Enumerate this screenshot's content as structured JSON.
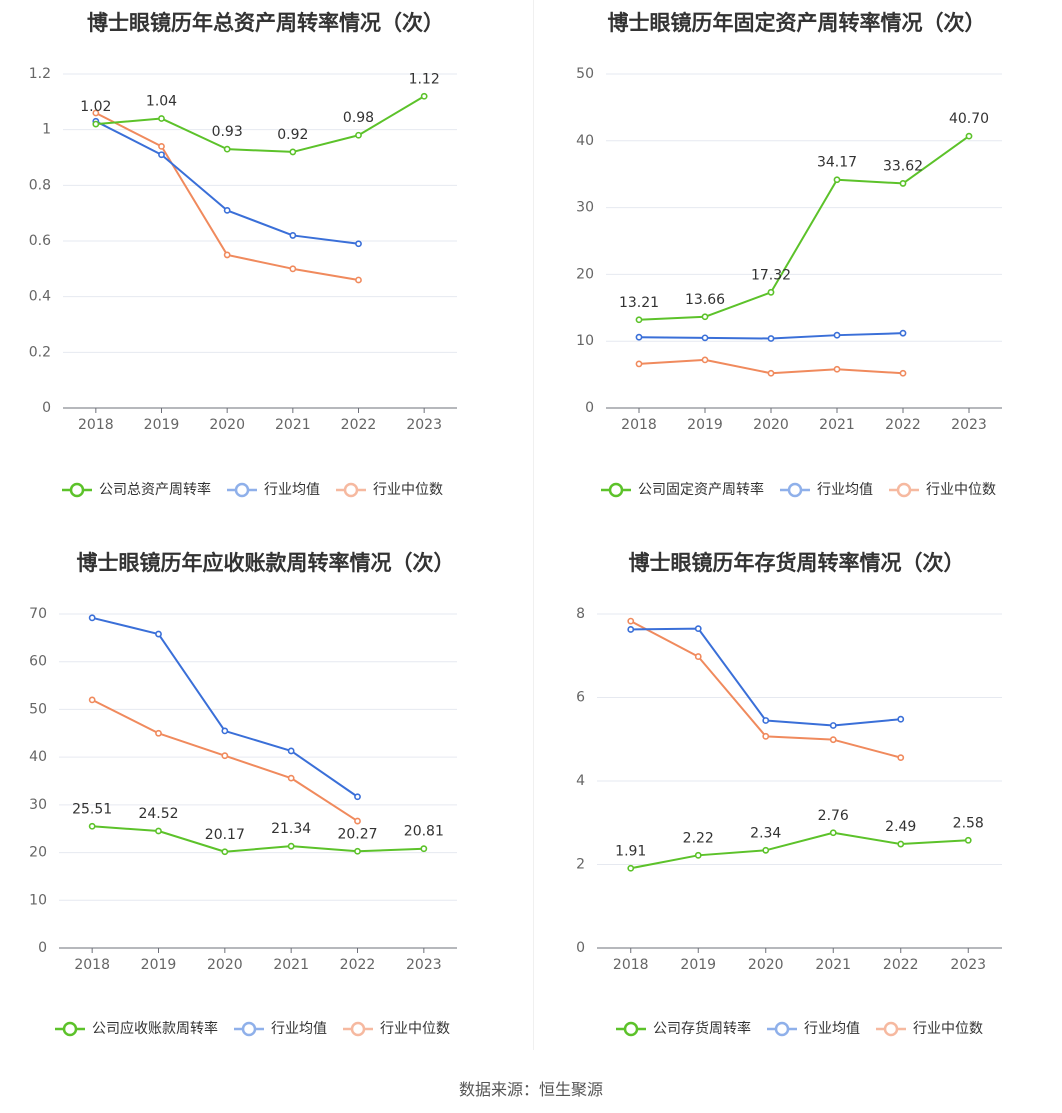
{
  "source": "数据来源：恒生聚源",
  "colors": {
    "company": "#5cc22a",
    "avg": "#3a6fd8",
    "median": "#f08a5d",
    "avg_legend": "#8fb0ea",
    "median_legend": "#f6b9a0"
  },
  "chart_data": [
    {
      "type": "line",
      "title": "博士眼镜历年总资产周转率情况（次）",
      "categories": [
        "2018",
        "2019",
        "2020",
        "2021",
        "2022",
        "2023"
      ],
      "ylim": [
        0,
        1.2
      ],
      "yticks": [
        "0",
        "0.2",
        "0.4",
        "0.6",
        "0.8",
        "1",
        "1.2"
      ],
      "ytick_values": [
        0,
        0.2,
        0.4,
        0.6,
        0.8,
        1,
        1.2
      ],
      "series": [
        {
          "name": "公司总资产周转率",
          "values": [
            1.02,
            1.04,
            0.93,
            0.92,
            0.98,
            1.12
          ],
          "labels": [
            "1.02",
            "1.04",
            "0.93",
            "0.92",
            "0.98",
            "1.12"
          ]
        },
        {
          "name": "行业均值",
          "values": [
            1.03,
            0.91,
            0.71,
            0.62,
            0.59,
            null
          ]
        },
        {
          "name": "行业中位数",
          "values": [
            1.06,
            0.94,
            0.55,
            0.5,
            0.46,
            null
          ]
        }
      ]
    },
    {
      "type": "line",
      "title": "博士眼镜历年固定资产周转率情况（次）",
      "categories": [
        "2018",
        "2019",
        "2020",
        "2021",
        "2022",
        "2023"
      ],
      "ylim": [
        0,
        50
      ],
      "yticks": [
        "0",
        "10",
        "20",
        "30",
        "40",
        "50"
      ],
      "ytick_values": [
        0,
        10,
        20,
        30,
        40,
        50
      ],
      "series": [
        {
          "name": "公司固定资产周转率",
          "values": [
            13.21,
            13.66,
            17.32,
            34.17,
            33.62,
            40.7
          ],
          "labels": [
            "13.21",
            "13.66",
            "17.32",
            "34.17",
            "33.62",
            "40.70"
          ]
        },
        {
          "name": "行业均值",
          "values": [
            10.6,
            10.5,
            10.4,
            10.9,
            11.2,
            null
          ]
        },
        {
          "name": "行业中位数",
          "values": [
            6.6,
            7.2,
            5.2,
            5.8,
            5.2,
            null
          ]
        }
      ]
    },
    {
      "type": "line",
      "title": "博士眼镜历年应收账款周转率情况（次）",
      "categories": [
        "2018",
        "2019",
        "2020",
        "2021",
        "2022",
        "2023"
      ],
      "ylim": [
        0,
        70
      ],
      "yticks": [
        "0",
        "10",
        "20",
        "30",
        "40",
        "50",
        "60",
        "70"
      ],
      "ytick_values": [
        0,
        10,
        20,
        30,
        40,
        50,
        60,
        70
      ],
      "series": [
        {
          "name": "公司应收账款周转率",
          "values": [
            25.51,
            24.52,
            20.17,
            21.34,
            20.27,
            20.81
          ],
          "labels": [
            "25.51",
            "24.52",
            "20.17",
            "21.34",
            "20.27",
            "20.81"
          ]
        },
        {
          "name": "行业均值",
          "values": [
            69.2,
            65.8,
            45.5,
            41.3,
            31.7,
            null
          ]
        },
        {
          "name": "行业中位数",
          "values": [
            52.0,
            45.0,
            40.3,
            35.6,
            26.6,
            null
          ]
        }
      ]
    },
    {
      "type": "line",
      "title": "博士眼镜历年存货周转率情况（次）",
      "categories": [
        "2018",
        "2019",
        "2020",
        "2021",
        "2022",
        "2023"
      ],
      "ylim": [
        0,
        8
      ],
      "yticks": [
        "0",
        "2",
        "4",
        "6",
        "8"
      ],
      "ytick_values": [
        0,
        2,
        4,
        6,
        8
      ],
      "series": [
        {
          "name": "公司存货周转率",
          "values": [
            1.91,
            2.22,
            2.34,
            2.76,
            2.49,
            2.58
          ],
          "labels": [
            "1.91",
            "2.22",
            "2.34",
            "2.76",
            "2.49",
            "2.58"
          ]
        },
        {
          "name": "行业均值",
          "values": [
            7.63,
            7.65,
            5.45,
            5.33,
            5.48,
            null
          ]
        },
        {
          "name": "行业中位数",
          "values": [
            7.83,
            6.98,
            5.07,
            4.99,
            4.56,
            null
          ]
        }
      ]
    }
  ]
}
